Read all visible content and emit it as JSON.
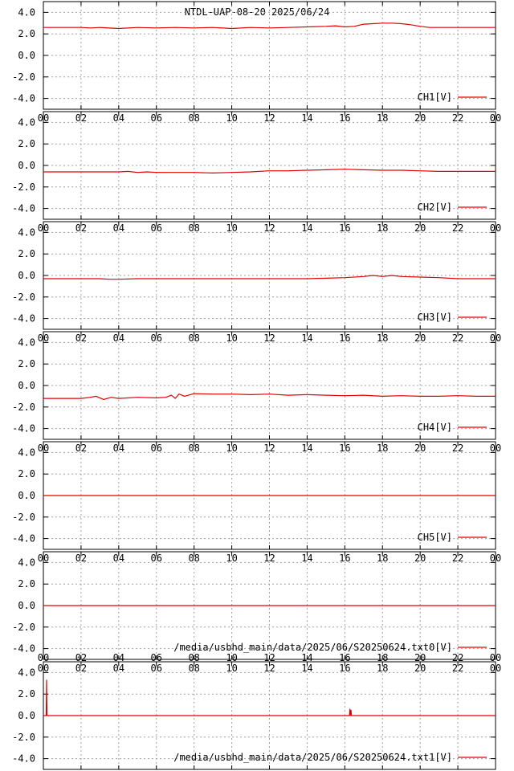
{
  "title": "NTDL-UAP-08-20 2025/06/24",
  "colors": {
    "trace": "#e00000",
    "grid": "#a0a0a0",
    "frame": "#000000"
  },
  "chart_data": {
    "type": "line",
    "x_ticks": [
      "00",
      "02",
      "04",
      "06",
      "08",
      "10",
      "12",
      "14",
      "16",
      "18",
      "20",
      "22",
      "00"
    ],
    "xlim": [
      0,
      24
    ],
    "y_ticks": [
      "4.0",
      "2.0",
      "0.0",
      "-2.0",
      "-4.0"
    ],
    "ylim": [
      -5,
      5
    ],
    "grid": true,
    "legend": "bottom-right",
    "panels": [
      {
        "name": "CH1[V]",
        "x": [
          0,
          2,
          2.5,
          3,
          4,
          5,
          6,
          7,
          8,
          9,
          10,
          11,
          12,
          13,
          14,
          15,
          15.5,
          16,
          16.5,
          17,
          17.5,
          18,
          18.5,
          19,
          19.5,
          20,
          20.5,
          21,
          22,
          23,
          24
        ],
        "values": [
          2.6,
          2.6,
          2.55,
          2.6,
          2.5,
          2.6,
          2.55,
          2.6,
          2.55,
          2.6,
          2.5,
          2.6,
          2.55,
          2.6,
          2.65,
          2.7,
          2.75,
          2.65,
          2.7,
          2.9,
          2.95,
          3.0,
          3.0,
          2.95,
          2.85,
          2.7,
          2.6,
          2.6,
          2.6,
          2.6,
          2.6
        ]
      },
      {
        "name": "CH2[V]",
        "x": [
          0,
          2,
          4,
          4.5,
          5,
          5.5,
          6,
          8,
          9,
          10,
          11,
          12,
          13,
          14,
          15,
          16,
          17,
          18,
          19,
          20,
          21,
          22,
          23,
          24
        ],
        "values": [
          -0.6,
          -0.6,
          -0.6,
          -0.55,
          -0.65,
          -0.6,
          -0.65,
          -0.65,
          -0.7,
          -0.65,
          -0.6,
          -0.5,
          -0.5,
          -0.45,
          -0.4,
          -0.35,
          -0.4,
          -0.45,
          -0.45,
          -0.5,
          -0.55,
          -0.55,
          -0.55,
          -0.55
        ]
      },
      {
        "name": "CH3[V]",
        "x": [
          0,
          2,
          3,
          3.5,
          4,
          5,
          6,
          8,
          10,
          12,
          14,
          15,
          16,
          17,
          17.5,
          18,
          18.5,
          19,
          20,
          21,
          22,
          23,
          24
        ],
        "values": [
          -0.3,
          -0.3,
          -0.3,
          -0.35,
          -0.35,
          -0.3,
          -0.3,
          -0.3,
          -0.3,
          -0.3,
          -0.3,
          -0.25,
          -0.2,
          -0.1,
          0.0,
          -0.1,
          0.0,
          -0.1,
          -0.15,
          -0.2,
          -0.3,
          -0.3,
          -0.3
        ]
      },
      {
        "name": "CH4[V]",
        "x": [
          0,
          1,
          2,
          2.5,
          2.8,
          3.2,
          3.6,
          4,
          5,
          6,
          6.5,
          6.8,
          7,
          7.2,
          7.5,
          8,
          9,
          10,
          11,
          12,
          13,
          14,
          15,
          16,
          17,
          18,
          19,
          20,
          21,
          22,
          23,
          24
        ],
        "values": [
          -1.2,
          -1.2,
          -1.2,
          -1.1,
          -1.0,
          -1.3,
          -1.1,
          -1.2,
          -1.1,
          -1.15,
          -1.1,
          -0.9,
          -1.2,
          -0.8,
          -1.0,
          -0.75,
          -0.8,
          -0.8,
          -0.85,
          -0.8,
          -0.9,
          -0.85,
          -0.9,
          -0.95,
          -0.9,
          -1.0,
          -0.95,
          -1.0,
          -1.0,
          -0.95,
          -1.0,
          -1.0
        ]
      },
      {
        "name": "CH5[V]",
        "x": [
          0,
          24
        ],
        "values": [
          0.0,
          0.0
        ]
      },
      {
        "name": "/media/usbhd_main/data/2025/06/S20250624.txt0[V]",
        "x": [
          0,
          24
        ],
        "values": [
          0.0,
          0.0
        ]
      },
      {
        "name": "/media/usbhd_main/data/2025/06/S20250624.txt1[V]",
        "x": [
          0,
          0.15,
          0.17,
          0.19,
          0.25,
          16.25,
          16.27,
          16.3,
          16.33,
          16.35,
          24
        ],
        "values": [
          0.0,
          0.0,
          3.3,
          0.0,
          0.0,
          0.0,
          0.6,
          0.0,
          0.5,
          0.0,
          0.0
        ]
      }
    ]
  }
}
